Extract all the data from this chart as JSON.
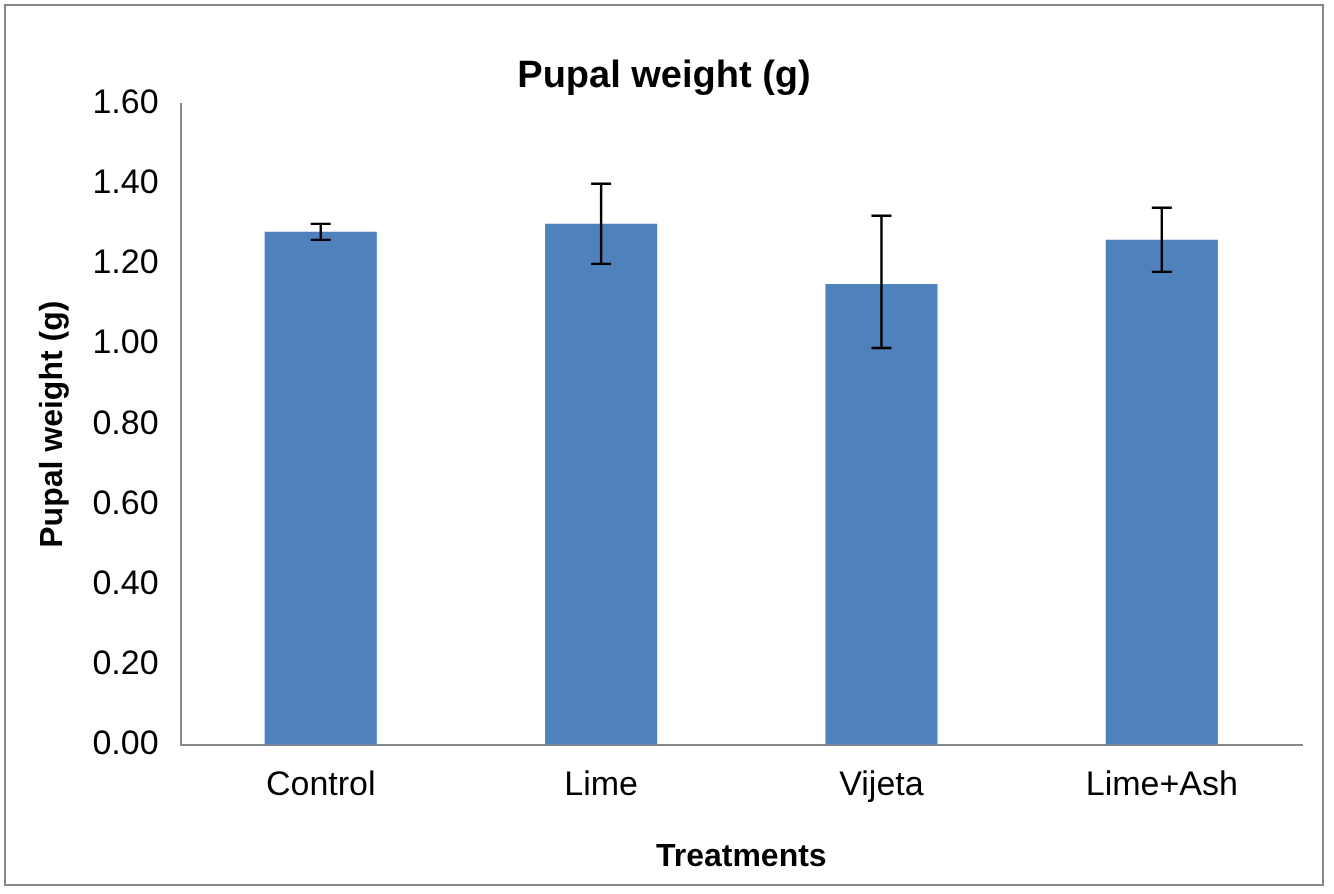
{
  "chart_data": {
    "type": "bar",
    "title": "Pupal weight (g)",
    "xlabel": "Treatments",
    "ylabel": "Pupal weight (g)",
    "categories": [
      "Control",
      "Lime",
      "Vijeta",
      "Lime+Ash"
    ],
    "values": [
      1.28,
      1.3,
      1.15,
      1.26
    ],
    "errors": [
      0.02,
      0.1,
      [
        0.99,
        1.32
      ],
      0.08
    ],
    "color": "#4f81bd",
    "ylim": [
      0,
      1.6
    ],
    "yticks": [
      {
        "value": 0,
        "label": "0.00"
      },
      {
        "value": 0.2,
        "label": "0.20"
      },
      {
        "value": 0.4,
        "label": "0.40"
      },
      {
        "value": 0.6,
        "label": "0.60"
      },
      {
        "value": 0.8,
        "label": "0.80"
      },
      {
        "value": 1.0,
        "label": "1.00"
      },
      {
        "value": 1.2,
        "label": "1.20"
      },
      {
        "value": 1.4,
        "label": "1.40"
      },
      {
        "value": 1.6,
        "label": "1.60"
      }
    ],
    "grid": false,
    "legend": false
  }
}
